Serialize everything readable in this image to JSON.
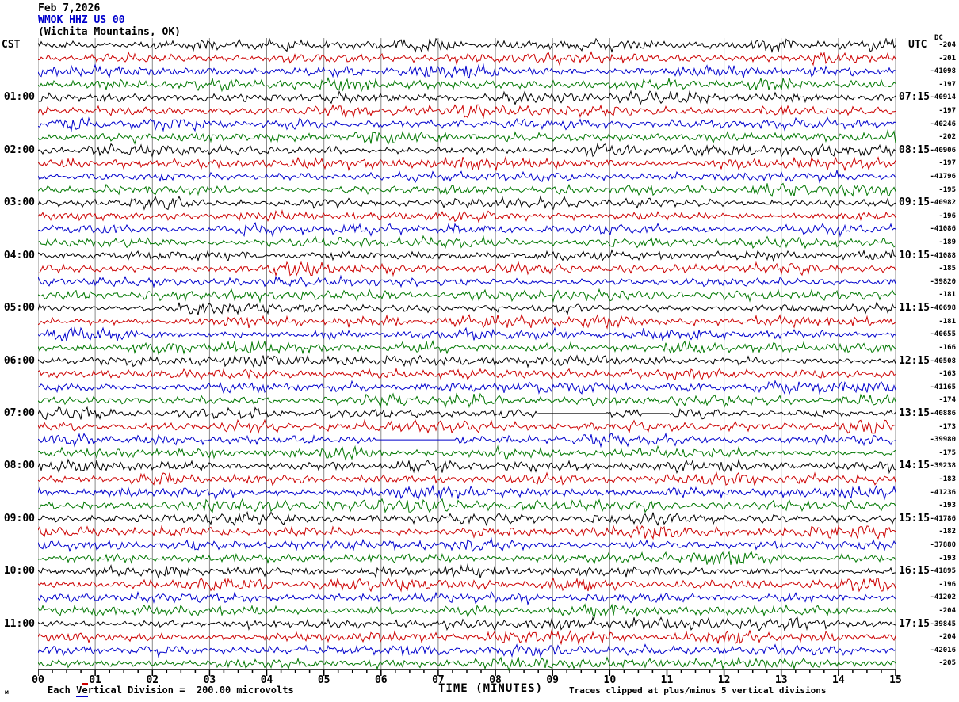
{
  "header": {
    "date": "Feb 7,2026",
    "station": "WMOK HHZ US 00",
    "location": "(Wichita Mountains, OK)"
  },
  "axes": {
    "left_timezone_label": "CST",
    "right_timezone_label": "UTC",
    "dc_column_label": "DC",
    "x_axis_title": "TIME (MINUTES)",
    "x_tick_labels": [
      "00",
      "01",
      "02",
      "03",
      "04",
      "05",
      "06",
      "07",
      "08",
      "09",
      "10",
      "11",
      "12",
      "13",
      "14",
      "15"
    ]
  },
  "footer": {
    "scale_part1": "Each ",
    "scale_part_v": "V",
    "scale_part_e": "e",
    "scale_part2": "rtical Division =  200.00 microvolts",
    "corner_glyph": "м",
    "clip_note": "Traces clipped at plus/minus 5 vertical divisions"
  },
  "colors": {
    "trace_cycle_hex": [
      "#000000",
      "#cc0000",
      "#0000cc",
      "#007700"
    ],
    "grid_hex": "#8a8a8a",
    "station_text_hex": "#0000cc",
    "background_hex": "#ffffff"
  },
  "chart_data": {
    "type": "line",
    "kind": "seismogram-heliplot-webicorder",
    "title": "WMOK HHZ US 00 (Wichita Mountains, OK) Feb 7,2026",
    "xlabel": "TIME (MINUTES)",
    "x_range_minutes": [
      0,
      15
    ],
    "minutes_per_trace_line": 15,
    "trace_rows": 48,
    "trace_color_cycle": [
      "black",
      "red",
      "blue",
      "green"
    ],
    "grid": "vertical gridlines at every minute",
    "minor_ticks_per_minute": 4,
    "left_hour_labels": [
      {
        "row": 4,
        "label": "01:00"
      },
      {
        "row": 8,
        "label": "02:00"
      },
      {
        "row": 12,
        "label": "03:00"
      },
      {
        "row": 16,
        "label": "04:00"
      },
      {
        "row": 20,
        "label": "05:00"
      },
      {
        "row": 24,
        "label": "06:00"
      },
      {
        "row": 28,
        "label": "07:00"
      },
      {
        "row": 32,
        "label": "08:00"
      },
      {
        "row": 36,
        "label": "09:00"
      },
      {
        "row": 40,
        "label": "10:00"
      },
      {
        "row": 44,
        "label": "11:00"
      }
    ],
    "right_hour_labels": [
      {
        "row": 4,
        "label": "07:15"
      },
      {
        "row": 8,
        "label": "08:15"
      },
      {
        "row": 12,
        "label": "09:15"
      },
      {
        "row": 16,
        "label": "10:15"
      },
      {
        "row": 20,
        "label": "11:15"
      },
      {
        "row": 24,
        "label": "12:15"
      },
      {
        "row": 28,
        "label": "13:15"
      },
      {
        "row": 32,
        "label": "14:15"
      },
      {
        "row": 36,
        "label": "15:15"
      },
      {
        "row": 40,
        "label": "16:15"
      },
      {
        "row": 44,
        "label": "17:15"
      }
    ],
    "dc_values_per_row": [
      "-204",
      "-201",
      "-41098",
      "-197",
      "-40914",
      "-197",
      "-40246",
      "-202",
      "-40906",
      "-197",
      "-41796",
      "-195",
      "-40982",
      "-196",
      "-41086",
      "-189",
      "-41088",
      "-185",
      "-39820",
      "-181",
      "-40698",
      "-181",
      "-40655",
      "-166",
      "-40508",
      "-163",
      "-41165",
      "-174",
      "-40886",
      "-173",
      "-39980",
      "-175",
      "-39238",
      "-183",
      "-41236",
      "-193",
      "-41786",
      "-182",
      "-37880",
      "-193",
      "-41895",
      "-196",
      "-41202",
      "-204",
      "-39845",
      "-204",
      "-42016",
      "-205"
    ],
    "data_gap_flat_segments": [
      {
        "row": 28,
        "from_minute": 8.75,
        "to_minute": 9.95
      },
      {
        "row": 28,
        "from_minute": 10.55,
        "to_minute": 11.05
      },
      {
        "row": 30,
        "from_minute": 5.9,
        "to_minute": 7.3
      }
    ],
    "scale_note": "Each Vertical Division = 200.00 microvolts",
    "clip_note": "Traces clipped at plus/minus 5 vertical divisions"
  }
}
